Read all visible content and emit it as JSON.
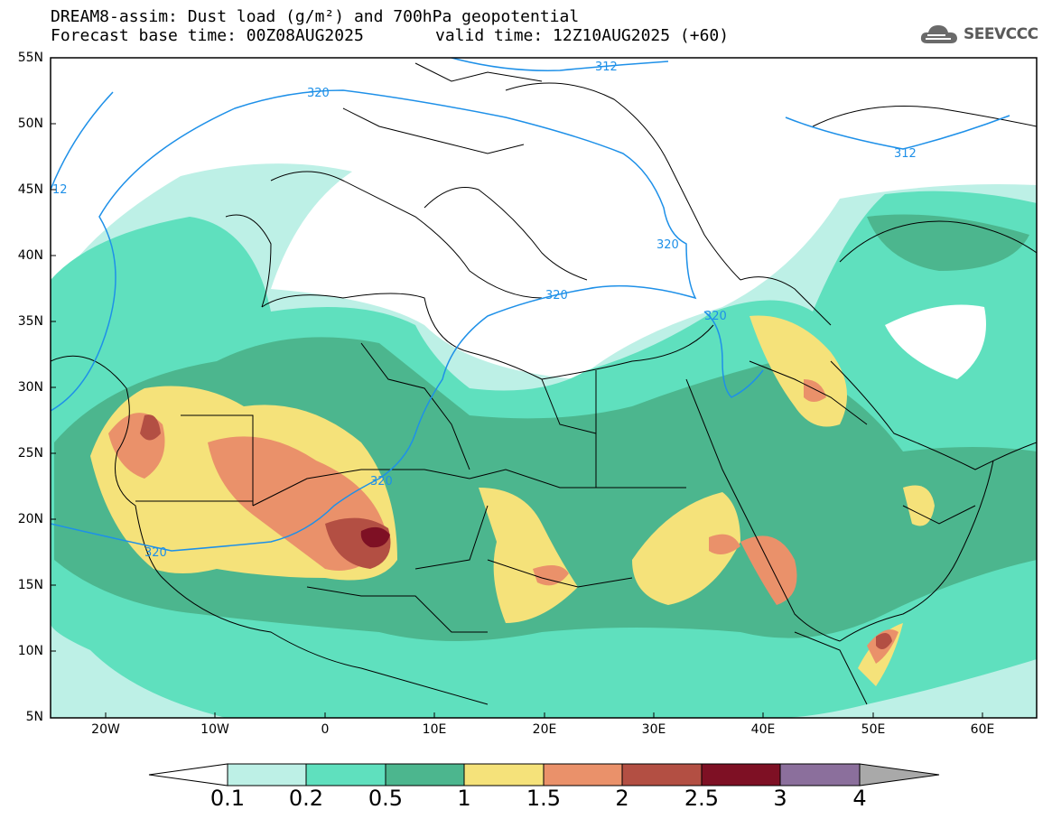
{
  "title": {
    "line1": "DREAM8-assim: Dust load (g/m²) and 700hPa geopotential",
    "line2_left": "Forecast base time: 00Z08AUG2025",
    "line2_right": "valid time: 12Z10AUG2025 (+60)"
  },
  "logo": {
    "text": "SEEVCCC",
    "icon": "cloud-logo-icon"
  },
  "map": {
    "lat_labels": [
      "55N",
      "50N",
      "45N",
      "40N",
      "35N",
      "30N",
      "25N",
      "20N",
      "15N",
      "10N",
      "5N"
    ],
    "lon_labels": [
      "20W",
      "10W",
      "0",
      "10E",
      "20E",
      "30E",
      "40E",
      "50E",
      "60E"
    ],
    "contour_labels": [
      "312",
      "320",
      "312",
      "12",
      "320",
      "320",
      "320",
      "320",
      "320"
    ],
    "colors": {
      "ocean": "#ffffff",
      "border": "#000000",
      "contour": "#1e90e8"
    }
  },
  "colorbar": {
    "labels": [
      "0.1",
      "0.2",
      "0.5",
      "1",
      "1.5",
      "2",
      "2.5",
      "3",
      "4"
    ],
    "colors": [
      "#ffffff",
      "#bdf0e6",
      "#5fe0be",
      "#4cb68e",
      "#f5e27a",
      "#ea916a",
      "#b34f43",
      "#7e1024",
      "#8b6f9c",
      "#a9a9a9"
    ]
  }
}
